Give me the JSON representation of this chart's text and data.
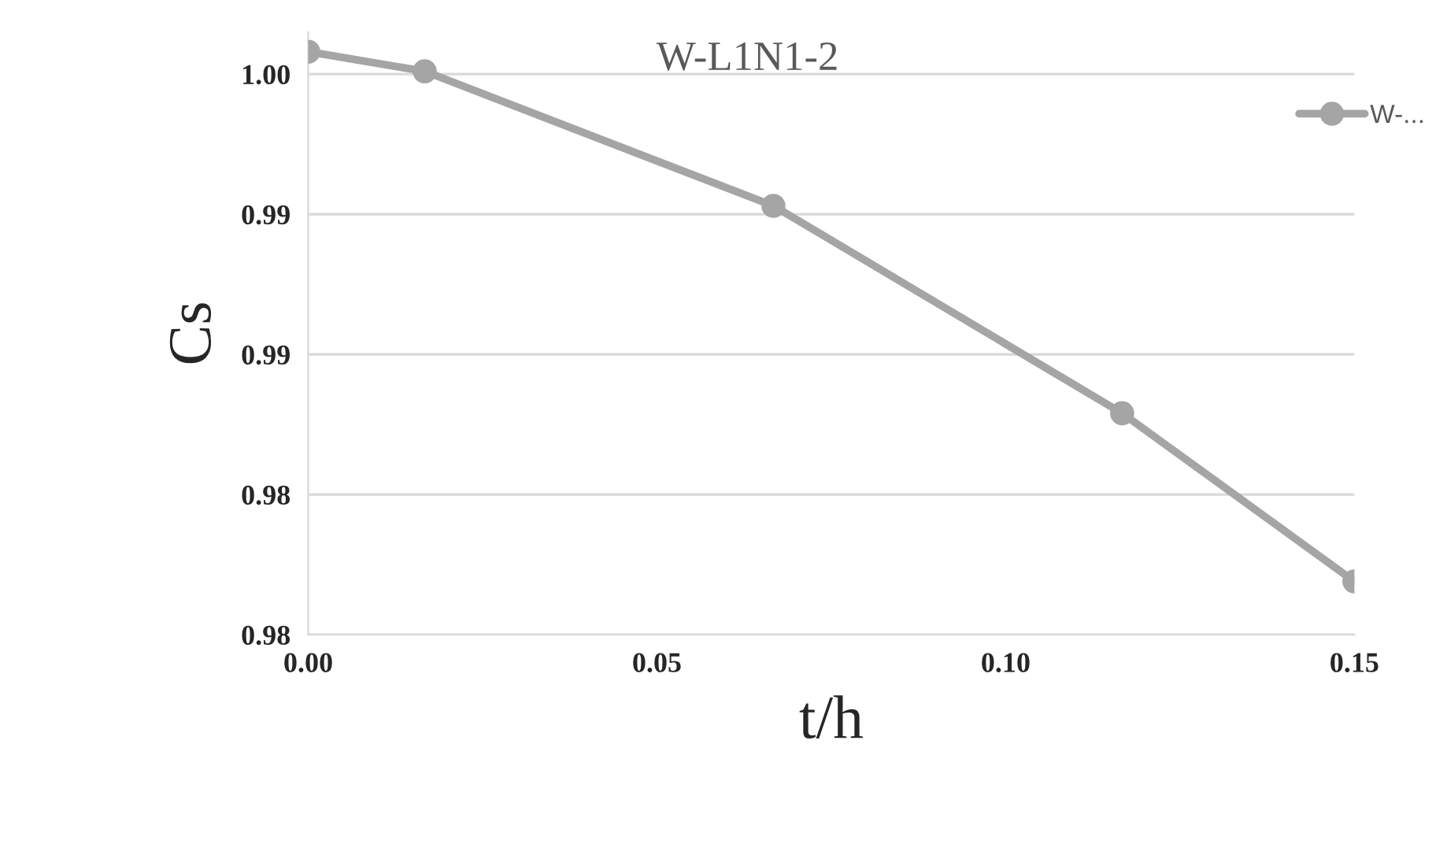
{
  "chart_data": {
    "type": "line",
    "title": "W-L1N1-2",
    "xlabel": "t/h",
    "ylabel": "Cs",
    "x": [
      0,
      0.0167,
      0.0667,
      0.1167,
      0.15
    ],
    "series": [
      {
        "name": "W-...",
        "color": "#a5a5a5",
        "values": [
          1.0008,
          1.0001,
          0.9953,
          0.9879,
          0.9819
        ]
      }
    ],
    "xlim": [
      0,
      0.15
    ],
    "xticks": [
      {
        "value": 0,
        "label": "0.00"
      },
      0.05,
      {
        "value": 0.1,
        "label": "0.10"
      },
      0.15
    ],
    "ylim": [
      0.98,
      1.0015
    ],
    "yticks": [
      {
        "value": 0.98,
        "label": "0.98"
      },
      {
        "value": 0.985,
        "label": "0.98"
      },
      {
        "value": 0.99,
        "label": "0.99"
      },
      {
        "value": 0.995,
        "label": "0.99"
      },
      {
        "value": 1.0,
        "label": "1.00"
      }
    ],
    "grid": "y",
    "legend": "top right",
    "marker": "circle",
    "line_style": "solid"
  }
}
